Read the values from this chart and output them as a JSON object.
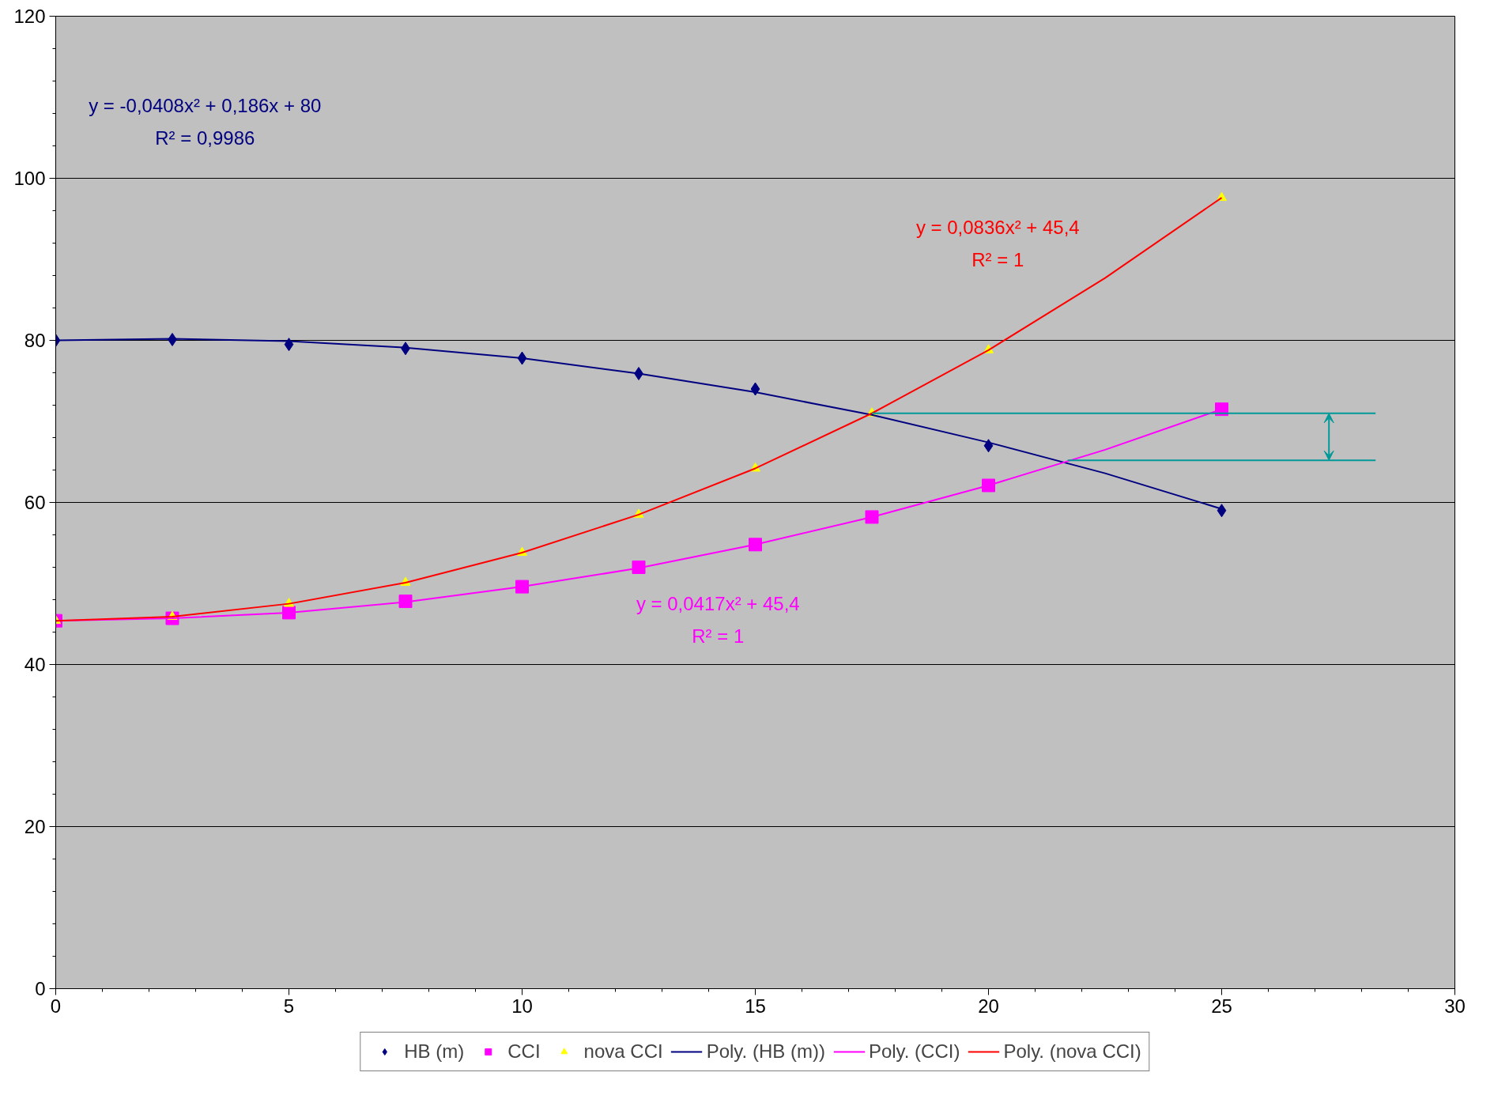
{
  "chart_data": {
    "type": "scatter",
    "x": [
      0,
      2.5,
      5,
      7.5,
      10,
      12.5,
      15,
      17.5,
      20,
      25
    ],
    "xlim": [
      0,
      30
    ],
    "xticks": [
      0,
      5,
      10,
      15,
      20,
      25,
      30
    ],
    "ylim": [
      0,
      120
    ],
    "yticks": [
      0,
      20,
      40,
      60,
      80,
      100,
      120
    ],
    "grid": "y",
    "legend": "bottom",
    "series": [
      {
        "name": "HB (m)",
        "color": "#000080",
        "marker": "diamond",
        "values": [
          80,
          80.1,
          79.5,
          79,
          77.8,
          75.9,
          74,
          null,
          67,
          59
        ]
      },
      {
        "name": "CCI",
        "color": "#ff00ff",
        "marker": "square",
        "values": [
          45.4,
          45.7,
          46.4,
          47.8,
          49.6,
          52,
          54.8,
          58.2,
          62.1,
          71.5
        ]
      },
      {
        "name": "nova CCI",
        "color": "#ffff00",
        "marker": "triangle",
        "values": [
          45.4,
          45.9,
          47.5,
          50.1,
          53.8,
          58.5,
          64.2,
          71,
          78.8,
          97.6
        ]
      },
      {
        "name": "Poly. (HB (m))",
        "type": "line",
        "color": "#000080",
        "marker": "none",
        "x": [
          0,
          2.5,
          5,
          7.5,
          10,
          12.5,
          15,
          17.5,
          20,
          22.5,
          25
        ],
        "values": [
          80,
          80.2,
          79.9,
          79.1,
          77.8,
          75.9,
          73.6,
          70.8,
          67.4,
          63.6,
          59.2
        ]
      },
      {
        "name": "Poly. (CCI)",
        "type": "line",
        "color": "#ff00ff",
        "marker": "none",
        "x": [
          0,
          2.5,
          5,
          7.5,
          10,
          12.5,
          15,
          17.5,
          20,
          22.5,
          25
        ],
        "values": [
          45.4,
          45.7,
          46.4,
          47.7,
          49.6,
          51.9,
          54.8,
          58.2,
          62.1,
          66.5,
          71.5
        ]
      },
      {
        "name": "Poly. (nova CCI)",
        "type": "line",
        "color": "#ff0000",
        "marker": "none",
        "x": [
          0,
          2.5,
          5,
          7.5,
          10,
          12.5,
          15,
          17.5,
          20,
          22.5,
          25
        ],
        "values": [
          45.4,
          45.9,
          47.5,
          50.1,
          53.8,
          58.5,
          64.2,
          71,
          78.8,
          87.7,
          97.6
        ]
      },
      {
        "type": "line",
        "color": "#009999",
        "marker": "none",
        "x": [
          17.5,
          28.3
        ],
        "values": [
          71,
          71
        ]
      },
      {
        "type": "line",
        "color": "#009999",
        "marker": "none",
        "x": [
          21.7,
          28.3
        ],
        "values": [
          65.2,
          65.2
        ]
      }
    ],
    "annotations": [
      "y = -0,0408x² + 0,186x + 80",
      "R² = 0,9986",
      "y = 0,0836x² + 45,4",
      "R² = 1",
      "y = 0,0417x² + 45,4",
      "R² = 1"
    ]
  }
}
